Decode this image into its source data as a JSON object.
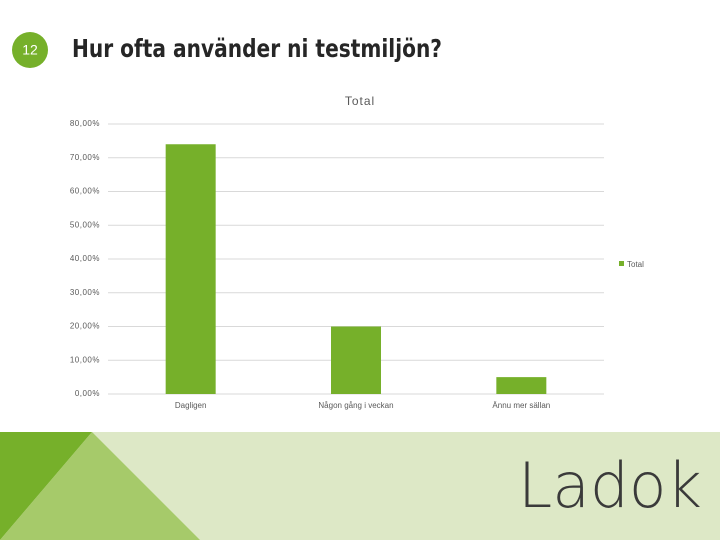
{
  "slide_number": "12",
  "title": "Hur ofta använder ni testmiljön?",
  "logo": "Ladok",
  "chart_data": {
    "type": "bar",
    "title": "Total",
    "categories": [
      "Dagligen",
      "Någon gång i veckan",
      "Ännu mer sällan"
    ],
    "series": [
      {
        "name": "Total",
        "color": "#76b02a",
        "values": [
          74,
          20,
          5
        ]
      }
    ],
    "ylim": [
      0,
      80
    ],
    "yticks": [
      {
        "value": 0,
        "label": "0,00%"
      },
      {
        "value": 10,
        "label": "10,00%"
      },
      {
        "value": 20,
        "label": "20,00%"
      },
      {
        "value": 30,
        "label": "30,00%"
      },
      {
        "value": 40,
        "label": "40,00%"
      },
      {
        "value": 50,
        "label": "50,00%"
      },
      {
        "value": 60,
        "label": "60,00%"
      },
      {
        "value": 70,
        "label": "70,00%"
      },
      {
        "value": 80,
        "label": "80,00%"
      }
    ],
    "grid": true,
    "legend": "right"
  }
}
